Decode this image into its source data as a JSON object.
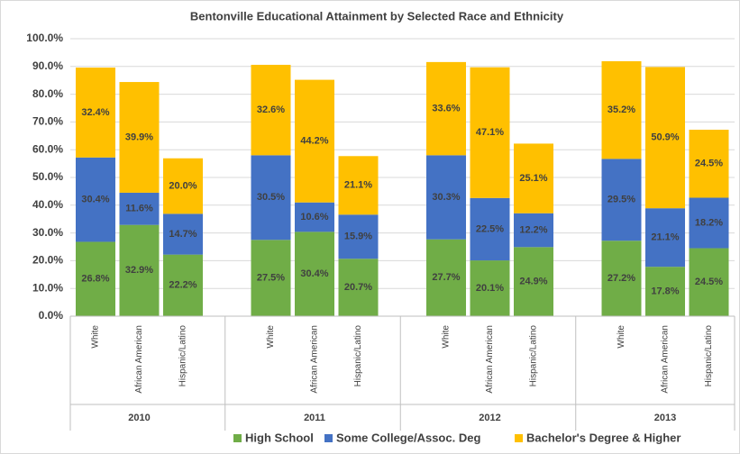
{
  "chart_data": {
    "type": "stacked_bar",
    "title": "Bentonville Educational Attainment by Selected Race and Ethnicity",
    "groups": [
      "2010",
      "2011",
      "2012",
      "2013"
    ],
    "categories": [
      "White",
      "African American",
      "Hispanic/Latino",
      "White",
      "African American",
      "Hispanic/Latino",
      "White",
      "African American",
      "Hispanic/Latino",
      "White",
      "African American",
      "Hispanic/Latino"
    ],
    "series": [
      {
        "name": "High School",
        "color": "#70ad47",
        "values": [
          26.8,
          32.9,
          22.2,
          27.5,
          30.4,
          20.7,
          27.7,
          20.1,
          24.9,
          27.2,
          17.8,
          24.5
        ],
        "value_labels": [
          "26.8%",
          "32.9%",
          "22.2%",
          "27.5%",
          "30.4%",
          "20.7%",
          "27.7%",
          "20.1%",
          "24.9%",
          "27.2%",
          "17.8%",
          "24.5%"
        ]
      },
      {
        "name": "Some College/Assoc. Deg",
        "color": "#4472c4",
        "values": [
          30.4,
          11.6,
          14.7,
          30.5,
          10.6,
          15.9,
          30.3,
          22.5,
          12.2,
          29.5,
          21.1,
          18.2
        ],
        "value_labels": [
          "30.4%",
          "11.6%",
          "14.7%",
          "30.5%",
          "10.6%",
          "15.9%",
          "30.3%",
          "22.5%",
          "12.2%",
          "29.5%",
          "21.1%",
          "18.2%"
        ]
      },
      {
        "name": "Bachelor's Degree & Higher",
        "color": "#ffc000",
        "values": [
          32.4,
          39.9,
          20.0,
          32.6,
          44.2,
          21.1,
          33.6,
          47.1,
          25.1,
          35.2,
          50.9,
          24.5
        ],
        "value_labels": [
          "32.4%",
          "39.9%",
          "20.0%",
          "32.6%",
          "44.2%",
          "21.1%",
          "33.6%",
          "47.1%",
          "25.1%",
          "35.2%",
          "50.9%",
          "24.5%"
        ]
      }
    ],
    "ylim": [
      0,
      100
    ],
    "yticks": [
      {
        "value": 0,
        "label": "0.0%"
      },
      {
        "value": 10,
        "label": "10.0%"
      },
      {
        "value": 20,
        "label": "20.0%"
      },
      {
        "value": 30,
        "label": "30.0%"
      },
      {
        "value": 40,
        "label": "40.0%"
      },
      {
        "value": 50,
        "label": "50.0%"
      },
      {
        "value": 60,
        "label": "60.0%"
      },
      {
        "value": 70,
        "label": "70.0%"
      },
      {
        "value": 80,
        "label": "80.0%"
      },
      {
        "value": 90,
        "label": "90.0%"
      },
      {
        "value": 100,
        "label": "100.0%"
      }
    ],
    "grid": true,
    "legend": "bottom"
  }
}
